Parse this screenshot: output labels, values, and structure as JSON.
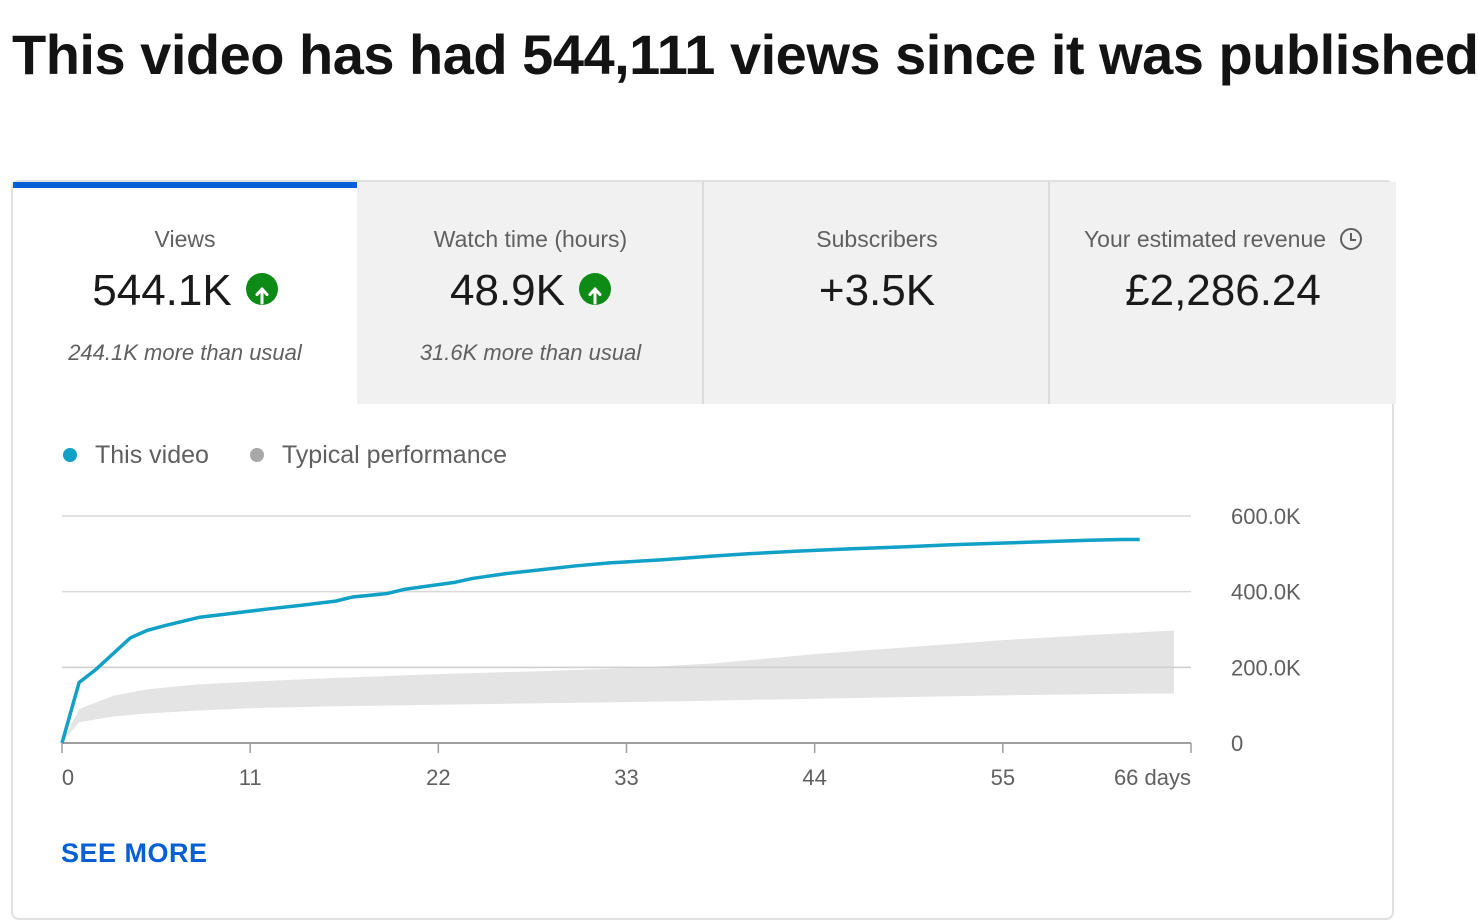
{
  "headline": "This video has had 544,111 views since it was published",
  "tabs": [
    {
      "title": "Views",
      "value": "544.1K",
      "note": "244.1K more than usual",
      "trend": "up"
    },
    {
      "title": "Watch time (hours)",
      "value": "48.9K",
      "note": "31.6K more than usual",
      "trend": "up"
    },
    {
      "title": "Subscribers",
      "value": "+3.5K",
      "note": ""
    },
    {
      "title": "Your estimated revenue",
      "value": "£2,286.24",
      "note": "",
      "icon": "clock-icon"
    }
  ],
  "legend": [
    {
      "label": "This video",
      "color": "#11a0c6"
    },
    {
      "label": "Typical performance",
      "color": "#a8a8a8"
    }
  ],
  "see_more": "SEE MORE",
  "colors": {
    "accent": "#065fd4",
    "series": "#11a0c6",
    "band": "#e4e4e4",
    "trend_up": "#0e8a16"
  },
  "chart_data": {
    "type": "line",
    "x_ticks": [
      0,
      11,
      22,
      33,
      44,
      55,
      66
    ],
    "x_tick_labels": [
      "0",
      "11",
      "22",
      "33",
      "44",
      "55",
      "66 days"
    ],
    "y_ticks": [
      0,
      200000,
      400000,
      600000
    ],
    "y_tick_labels": [
      "0",
      "200.0K",
      "400.0K",
      "600.0K"
    ],
    "xlim": [
      0,
      66
    ],
    "ylim": [
      0,
      600000
    ],
    "series": [
      {
        "name": "This video",
        "color": "#11a0c6",
        "x": [
          0,
          1,
          2,
          4,
          5,
          6,
          8,
          10,
          12,
          14,
          16,
          17,
          19,
          20,
          23,
          24,
          26,
          28,
          30,
          32,
          35,
          38,
          40,
          43,
          46,
          49,
          52,
          54,
          56,
          58,
          60,
          62,
          63
        ],
        "y": [
          0,
          160000,
          195000,
          278000,
          298000,
          310000,
          332000,
          343000,
          354000,
          364000,
          375000,
          386000,
          395000,
          406000,
          425000,
          435000,
          448000,
          458000,
          468000,
          476000,
          484000,
          494000,
          500000,
          507000,
          513000,
          518000,
          524000,
          527000,
          530000,
          533000,
          536000,
          538000,
          538000
        ]
      },
      {
        "name": "Typical performance",
        "type": "band",
        "color": "#e4e4e4",
        "x": [
          0,
          1,
          3,
          5,
          8,
          11,
          16,
          22,
          28,
          33,
          38,
          44,
          50,
          55,
          60,
          64,
          65
        ],
        "upper": [
          0,
          90000,
          125000,
          142000,
          155000,
          162000,
          172000,
          182000,
          190000,
          198000,
          210000,
          235000,
          255000,
          272000,
          285000,
          295000,
          297000
        ],
        "lower": [
          0,
          55000,
          70000,
          78000,
          86000,
          92000,
          97000,
          101000,
          105000,
          108000,
          112000,
          117000,
          122000,
          126000,
          129000,
          131000,
          131000
        ]
      }
    ],
    "grid": true,
    "legend_position": "top-left"
  }
}
